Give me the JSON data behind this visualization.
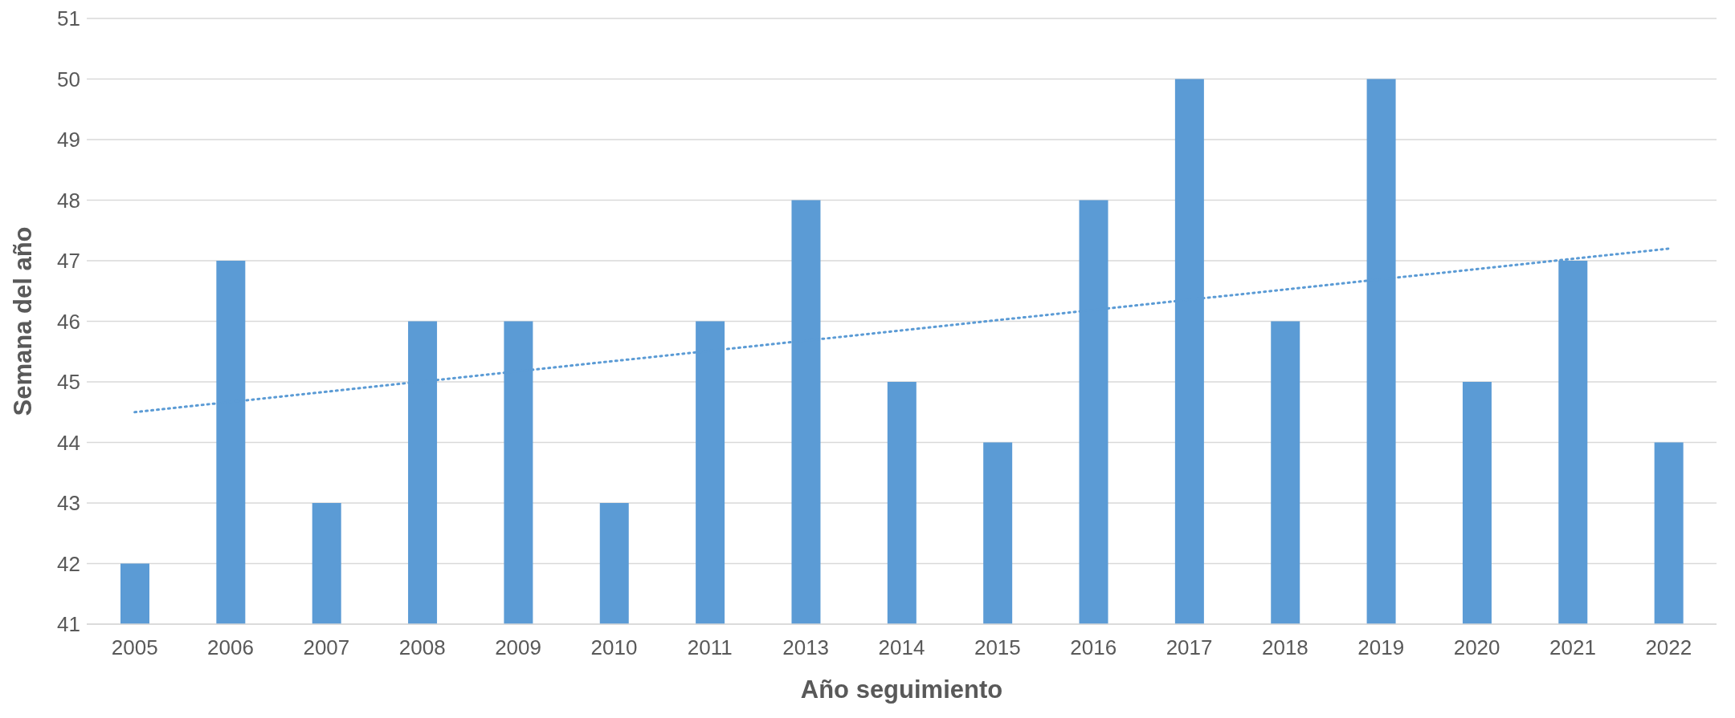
{
  "chart_data": {
    "type": "bar",
    "xlabel": "Año seguimiento",
    "ylabel": "Semana del año",
    "categories": [
      "2005",
      "2006",
      "2007",
      "2008",
      "2009",
      "2010",
      "2011",
      "2013",
      "2014",
      "2015",
      "2016",
      "2017",
      "2018",
      "2019",
      "2020",
      "2021",
      "2022"
    ],
    "series": [
      {
        "color": "#5b9bd5",
        "values": [
          42,
          47,
          43,
          46,
          46,
          43,
          46,
          48,
          45,
          44,
          48,
          50,
          46,
          50,
          45,
          47,
          44
        ]
      },
      {
        "type": "line",
        "color": "#5b9bd5",
        "line_style": "dotted",
        "values": [
          44.5,
          null,
          null,
          null,
          null,
          null,
          null,
          null,
          null,
          null,
          null,
          null,
          null,
          null,
          null,
          null,
          47.2
        ]
      }
    ],
    "ylim": [
      41,
      51
    ],
    "yticks": [
      41,
      42,
      43,
      44,
      45,
      46,
      47,
      48,
      49,
      50,
      51
    ],
    "grid": "y",
    "legend": false
  }
}
